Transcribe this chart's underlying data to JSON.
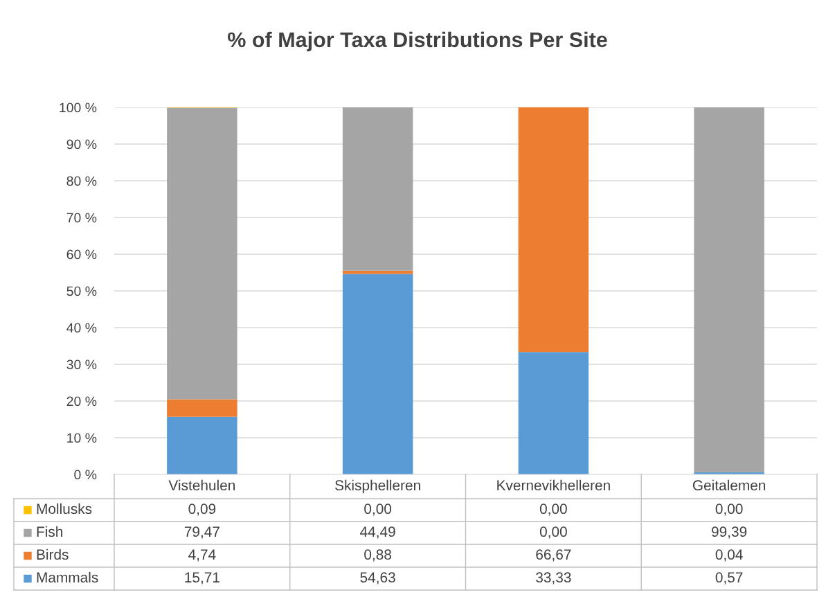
{
  "chart_data": {
    "type": "bar",
    "title": "% of Major Taxa Distributions Per Site",
    "stacked": true,
    "categories": [
      "Vistehulen",
      "Skisphelleren",
      "Kvernevikhelleren",
      "Geitalemen"
    ],
    "series": [
      {
        "name": "Mammals",
        "color": "#5b9bd5",
        "values": [
          15.71,
          54.63,
          33.33,
          0.57
        ],
        "value_labels": [
          "15,71",
          "54,63",
          "33,33",
          "0,57"
        ]
      },
      {
        "name": "Birds",
        "color": "#ed7d31",
        "values": [
          4.74,
          0.88,
          66.67,
          0.04
        ],
        "value_labels": [
          "4,74",
          "0,88",
          "66,67",
          "0,04"
        ]
      },
      {
        "name": "Fish",
        "color": "#a5a5a5",
        "values": [
          79.47,
          44.49,
          0.0,
          99.39
        ],
        "value_labels": [
          "79,47",
          "44,49",
          "0,00",
          "99,39"
        ]
      },
      {
        "name": "Mollusks",
        "color": "#ffc000",
        "values": [
          0.09,
          0.0,
          0.0,
          0.0
        ],
        "value_labels": [
          "0,09",
          "0,00",
          "0,00",
          "0,00"
        ]
      }
    ],
    "ylim": [
      0,
      100
    ],
    "yticks": [
      {
        "value": 0,
        "label": "0 %"
      },
      {
        "value": 10,
        "label": "10 %"
      },
      {
        "value": 20,
        "label": "20 %"
      },
      {
        "value": 30,
        "label": "30 %"
      },
      {
        "value": 40,
        "label": "40 %"
      },
      {
        "value": 50,
        "label": "50 %"
      },
      {
        "value": 60,
        "label": "60 %"
      },
      {
        "value": 70,
        "label": "70 %"
      },
      {
        "value": 80,
        "label": "80 %"
      },
      {
        "value": 90,
        "label": "90 %"
      },
      {
        "value": 100,
        "label": "100 %"
      }
    ],
    "grid": "y",
    "legend": "bottom"
  }
}
